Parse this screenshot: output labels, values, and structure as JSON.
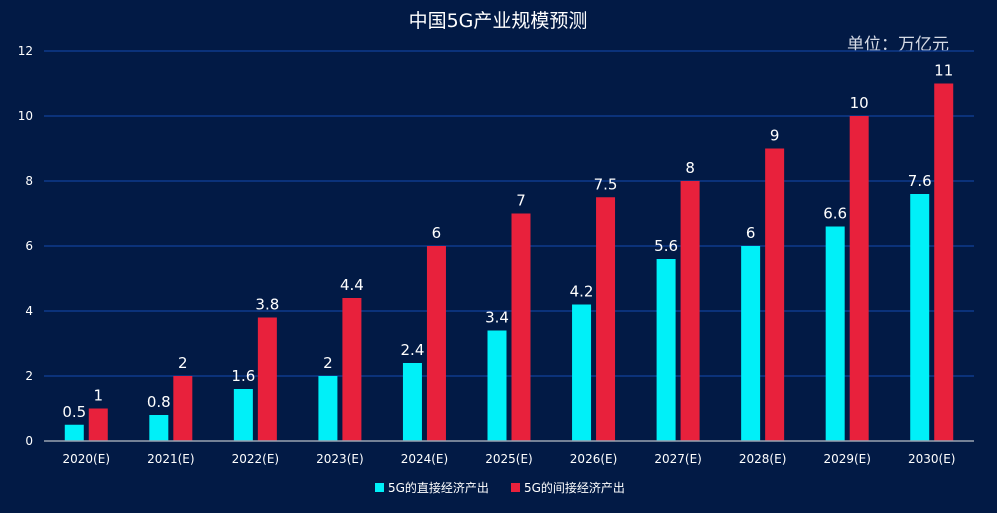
{
  "chart_data": {
    "type": "bar",
    "title": "中国5G产业规模预测",
    "unit_label": "单位：万亿元",
    "categories": [
      "2020(E)",
      "2021(E)",
      "2022(E)",
      "2023(E)",
      "2024(E)",
      "2025(E)",
      "2026(E)",
      "2027(E)",
      "2028(E)",
      "2029(E)",
      "2030(E)"
    ],
    "series": [
      {
        "name": "5G的直接经济产出",
        "color": "#00f0f8",
        "values": [
          0.5,
          0.8,
          1.6,
          2,
          2.4,
          3.4,
          4.2,
          5.6,
          6,
          6.6,
          7.6
        ],
        "labels": [
          "0.5",
          "0.8",
          "1.6",
          "2",
          "2.4",
          "3.4",
          "4.2",
          "5.6",
          "6",
          "6.6",
          "7.6"
        ]
      },
      {
        "name": "5G的间接经济产出",
        "color": "#e8213c",
        "values": [
          1,
          2,
          3.8,
          4.4,
          6,
          7,
          7.5,
          8,
          9,
          10,
          11
        ],
        "labels": [
          "1",
          "2",
          "3.8",
          "4.4",
          "6",
          "7",
          "7.5",
          "8",
          "9",
          "10",
          "11"
        ]
      }
    ],
    "yticks": [
      "0",
      "2",
      "4",
      "6",
      "8",
      "10",
      "12"
    ],
    "ylim": [
      0,
      12
    ],
    "xlabel": "",
    "ylabel": "",
    "grid": true,
    "legend_position": "bottom-center"
  }
}
